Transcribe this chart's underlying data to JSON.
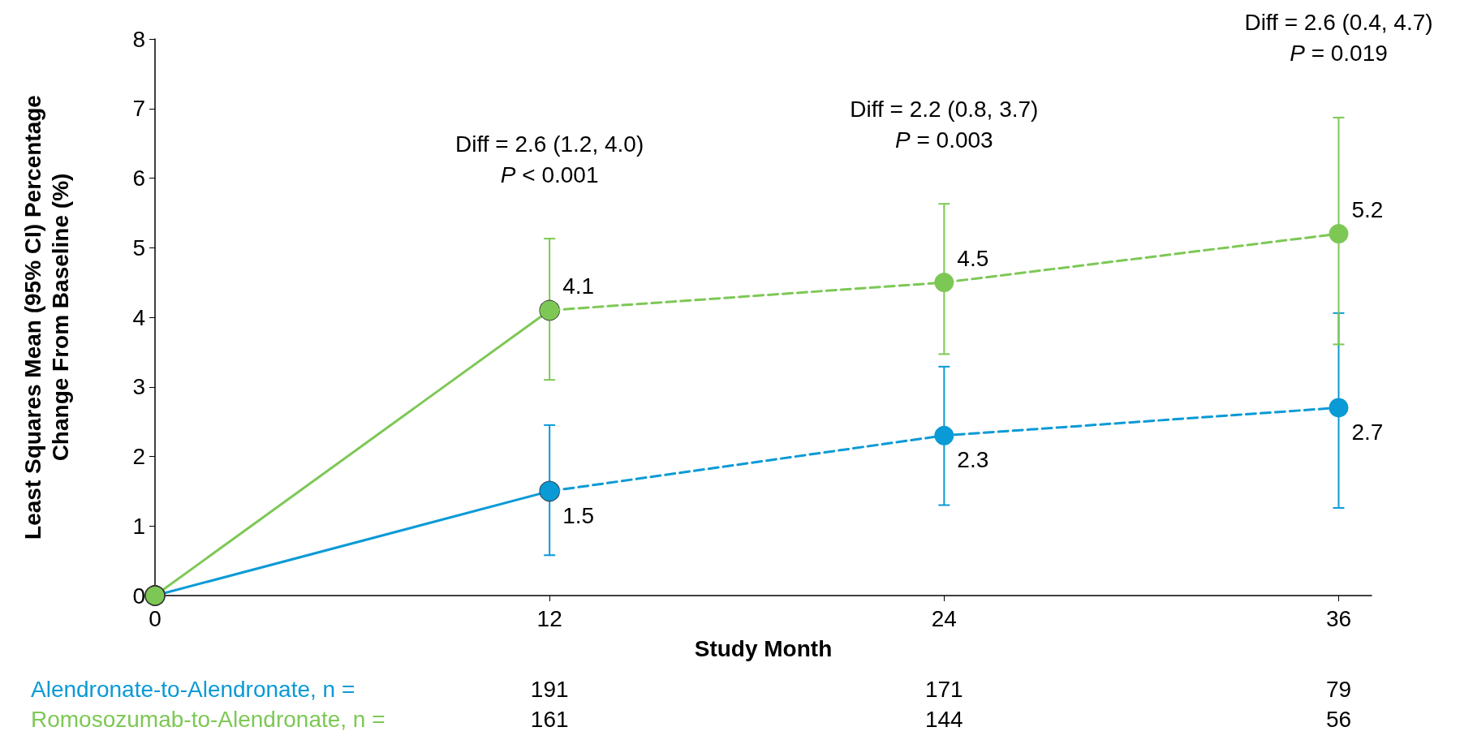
{
  "chart_data": {
    "type": "line",
    "xlabel": "Study Month",
    "ylabel": "Least Squares Mean (95% CI) Percentage\nChange From Baseline (%)",
    "xlim": [
      0,
      37
    ],
    "xticks": [
      0,
      12,
      24,
      36
    ],
    "ylim": [
      0,
      8
    ],
    "yticks": [
      0,
      1,
      2,
      3,
      4,
      5,
      6,
      7,
      8
    ],
    "marker": "circle",
    "grid": false,
    "series": [
      {
        "color": "#0a9ad6",
        "x": [
          0,
          12
        ],
        "values": [
          0,
          1.5
        ],
        "line_style": "solid"
      },
      {
        "color": "#7dc855",
        "x": [
          0,
          12
        ],
        "values": [
          0,
          4.1
        ],
        "line_style": "solid"
      },
      {
        "color": "#0a9ad6",
        "x": [
          12,
          24,
          36
        ],
        "values": [
          1.5,
          2.3,
          2.7
        ],
        "line_style": "dashed",
        "errors": [
          [
            0.58,
            2.45
          ],
          [
            1.3,
            3.29
          ],
          [
            1.26,
            4.06
          ]
        ],
        "value_labels": [
          "1.5",
          "2.3",
          "2.7"
        ]
      },
      {
        "color": "#7dc855",
        "x": [
          12,
          24,
          36
        ],
        "values": [
          4.1,
          4.5,
          5.2
        ],
        "line_style": "dashed",
        "errors": [
          [
            3.1,
            5.13
          ],
          [
            3.47,
            5.63
          ],
          [
            3.61,
            6.87
          ]
        ],
        "value_labels": [
          "4.1",
          "4.5",
          "5.2"
        ]
      }
    ],
    "annotations": [
      "Diff = 2.6 (1.2, 4.0)\nP < 0.001",
      "Diff = 2.2 (0.8, 3.7)\nP = 0.003",
      "Diff = 2.6 (0.4, 4.7)\nP = 0.019",
      "Alendronate-to-Alendronate, n =",
      "Romosozumab-to-Alendronate, n =",
      "191",
      "171",
      "79",
      "161",
      "144",
      "56"
    ]
  }
}
